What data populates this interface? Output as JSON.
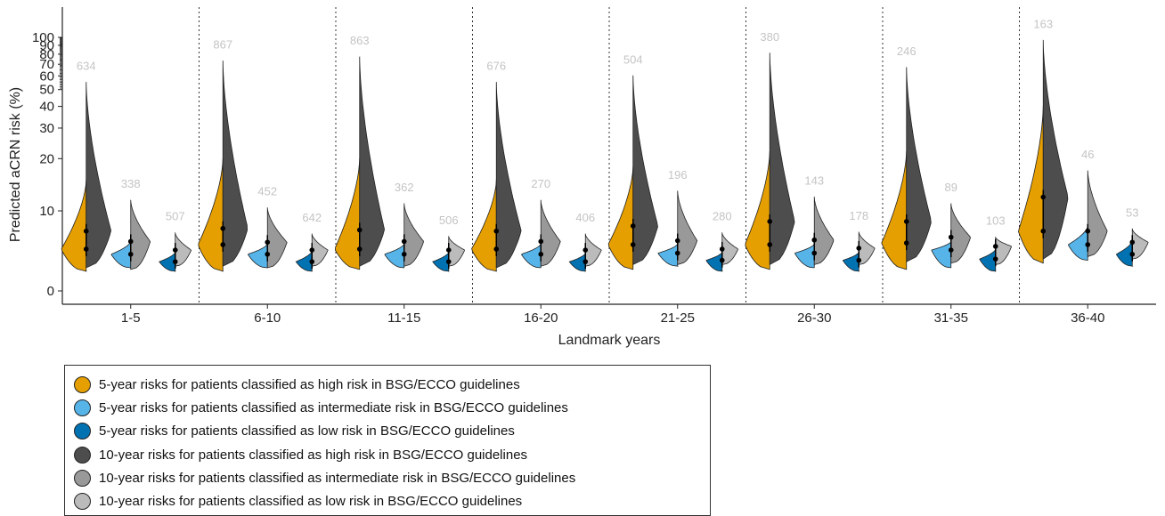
{
  "chart_data": {
    "type": "violin",
    "xlabel": "Landmark years",
    "ylabel": "Predicted aCRN risk (%)",
    "y_scale": "log",
    "yticks": [
      0,
      10,
      20,
      30,
      40,
      50,
      60,
      70,
      80,
      90,
      100
    ],
    "ylim": [
      0,
      100
    ],
    "categories": [
      "1-5",
      "6-10",
      "11-15",
      "16-20",
      "21-25",
      "26-30",
      "31-35",
      "36-40"
    ],
    "series": [
      {
        "name": "5-year risks for patients classified as high risk in BSG/ECCO guidelines",
        "color": "#E69F00",
        "min": [
          0.8,
          0.8,
          0.9,
          0.8,
          0.9,
          0.9,
          0.9,
          1.3
        ],
        "max": [
          15,
          20,
          20,
          15,
          18,
          22,
          22,
          40
        ],
        "median": [
          2.5,
          3,
          2.5,
          2.5,
          3,
          3,
          3.2,
          5
        ]
      },
      {
        "name": "5-year risks for patients classified as intermediate risk in BSG/ECCO guidelines",
        "color": "#56B4E9",
        "min": [
          1,
          1,
          1,
          1,
          1.1,
          1,
          1,
          1.5
        ],
        "max": [
          3.4,
          3.1,
          3.1,
          3.1,
          3.1,
          3.1,
          3.4,
          6
        ],
        "median": [
          2,
          2,
          2,
          2,
          2.1,
          2.1,
          2.4,
          3
        ]
      },
      {
        "name": "5-year risks for patients classified as low risk in BSG/ECCO guidelines",
        "color": "#0072B2",
        "min": [
          0.8,
          0.8,
          0.8,
          0.8,
          0.8,
          0.8,
          0.8,
          1.1
        ],
        "max": [
          2.2,
          2.3,
          2.2,
          2.1,
          2.2,
          2.2,
          2.5,
          3.5
        ],
        "median": [
          1.4,
          1.4,
          1.4,
          1.4,
          1.5,
          1.5,
          1.6,
          2
        ]
      },
      {
        "name": "10-year risks for patients classified as high risk in BSG/ECCO guidelines",
        "color": "#4D4D4D",
        "count": [
          634,
          867,
          863,
          676,
          504,
          380,
          246,
          163
        ],
        "min": [
          1,
          1.1,
          1.1,
          1,
          1.2,
          1.2,
          1.4,
          1.6
        ],
        "max": [
          55,
          73,
          77,
          55,
          60,
          81,
          67,
          96
        ],
        "median": [
          5,
          5.5,
          5.2,
          5,
          6,
          7,
          7,
          12
        ]
      },
      {
        "name": "10-year risks for patients classified as intermediate risk in BSG/ECCO guidelines",
        "color": "#999999",
        "count": [
          338,
          452,
          362,
          270,
          196,
          143,
          89,
          46
        ],
        "min": [
          0.9,
          1,
          1.1,
          1.1,
          1.2,
          1.2,
          1.3,
          1.8
        ],
        "max": [
          11.5,
          10.4,
          11,
          11.5,
          13,
          12,
          11,
          17
        ],
        "median": [
          3.4,
          3.3,
          3.4,
          3.4,
          3.5,
          3.6,
          4,
          5
        ]
      },
      {
        "name": "10-year risks for patients classified as low risk in BSG/ECCO guidelines",
        "color": "#BBBBBB",
        "count": [
          507,
          642,
          506,
          406,
          280,
          178,
          103,
          53
        ],
        "min": [
          1.1,
          1.1,
          1.1,
          1.1,
          1.2,
          1.2,
          1.2,
          1.6
        ],
        "max": [
          4.7,
          4.5,
          4.1,
          4.5,
          4.7,
          4.8,
          4,
          5.4
        ],
        "median": [
          2.4,
          2.4,
          2.4,
          2.4,
          2.5,
          2.6,
          2.8,
          3.3
        ]
      }
    ]
  }
}
